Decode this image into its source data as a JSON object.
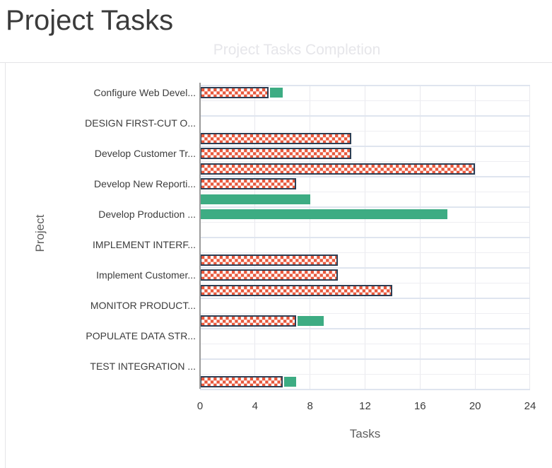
{
  "page": {
    "title": "Project Tasks"
  },
  "chart_data": {
    "type": "bar",
    "orientation": "horizontal",
    "title": "Project Tasks Completion",
    "xlabel": "Tasks",
    "ylabel": "Project",
    "xlim": [
      0,
      24
    ],
    "xticks": [
      0,
      4,
      8,
      12,
      16,
      20,
      24
    ],
    "grid": "on",
    "legend": "none",
    "series_styles": [
      {
        "name": "checkered",
        "fill": "#E8583C",
        "pattern": "checkerboard-white",
        "border": "#2C3E54"
      },
      {
        "name": "solid",
        "fill": "#3DAC83",
        "pattern": "none",
        "border": "none"
      }
    ],
    "rows": [
      {
        "label": "Configure Web Devel...",
        "checkered": 5,
        "solid": 1
      },
      {
        "label": "",
        "checkered": 0,
        "solid": 0
      },
      {
        "label": "DESIGN FIRST-CUT O...",
        "checkered": 0,
        "solid": 0
      },
      {
        "label": "",
        "checkered": 11,
        "solid": 0
      },
      {
        "label": "Develop Customer Tr...",
        "checkered": 11,
        "solid": 0
      },
      {
        "label": "",
        "checkered": 20,
        "solid": 0
      },
      {
        "label": "Develop New Reporti...",
        "checkered": 7,
        "solid": 0
      },
      {
        "label": "",
        "checkered": 0,
        "solid": 8
      },
      {
        "label": "Develop Production ...",
        "checkered": 0,
        "solid": 18
      },
      {
        "label": "",
        "checkered": 0,
        "solid": 0
      },
      {
        "label": "IMPLEMENT INTERF...",
        "checkered": 0,
        "solid": 0
      },
      {
        "label": "",
        "checkered": 10,
        "solid": 0
      },
      {
        "label": "Implement Customer...",
        "checkered": 10,
        "solid": 0
      },
      {
        "label": "",
        "checkered": 14,
        "solid": 0
      },
      {
        "label": "MONITOR PRODUCT...",
        "checkered": 0,
        "solid": 0
      },
      {
        "label": "",
        "checkered": 7,
        "solid": 2
      },
      {
        "label": "POPULATE DATA STR...",
        "checkered": 0,
        "solid": 0
      },
      {
        "label": "",
        "checkered": 0,
        "solid": 0
      },
      {
        "label": "TEST INTEGRATION ...",
        "checkered": 0,
        "solid": 0
      },
      {
        "label": "",
        "checkered": 6,
        "solid": 1
      }
    ],
    "colors": {
      "checkered_fill": "#E8583C",
      "checkered_border": "#2C3E54",
      "solid_fill": "#3DAC83",
      "axis_line": "#9B9B9B",
      "grid_light": "#EEEEF2",
      "grid_strong": "#DFE5EF",
      "grid_vertical": "#E8E8EE",
      "title_color": "#3B3B3B",
      "subtitle_color": "#E6E6EA",
      "tick_color": "#3C3C3C",
      "axis_title_color": "#5E5E5E",
      "divider_color": "#E4E4E7"
    }
  }
}
